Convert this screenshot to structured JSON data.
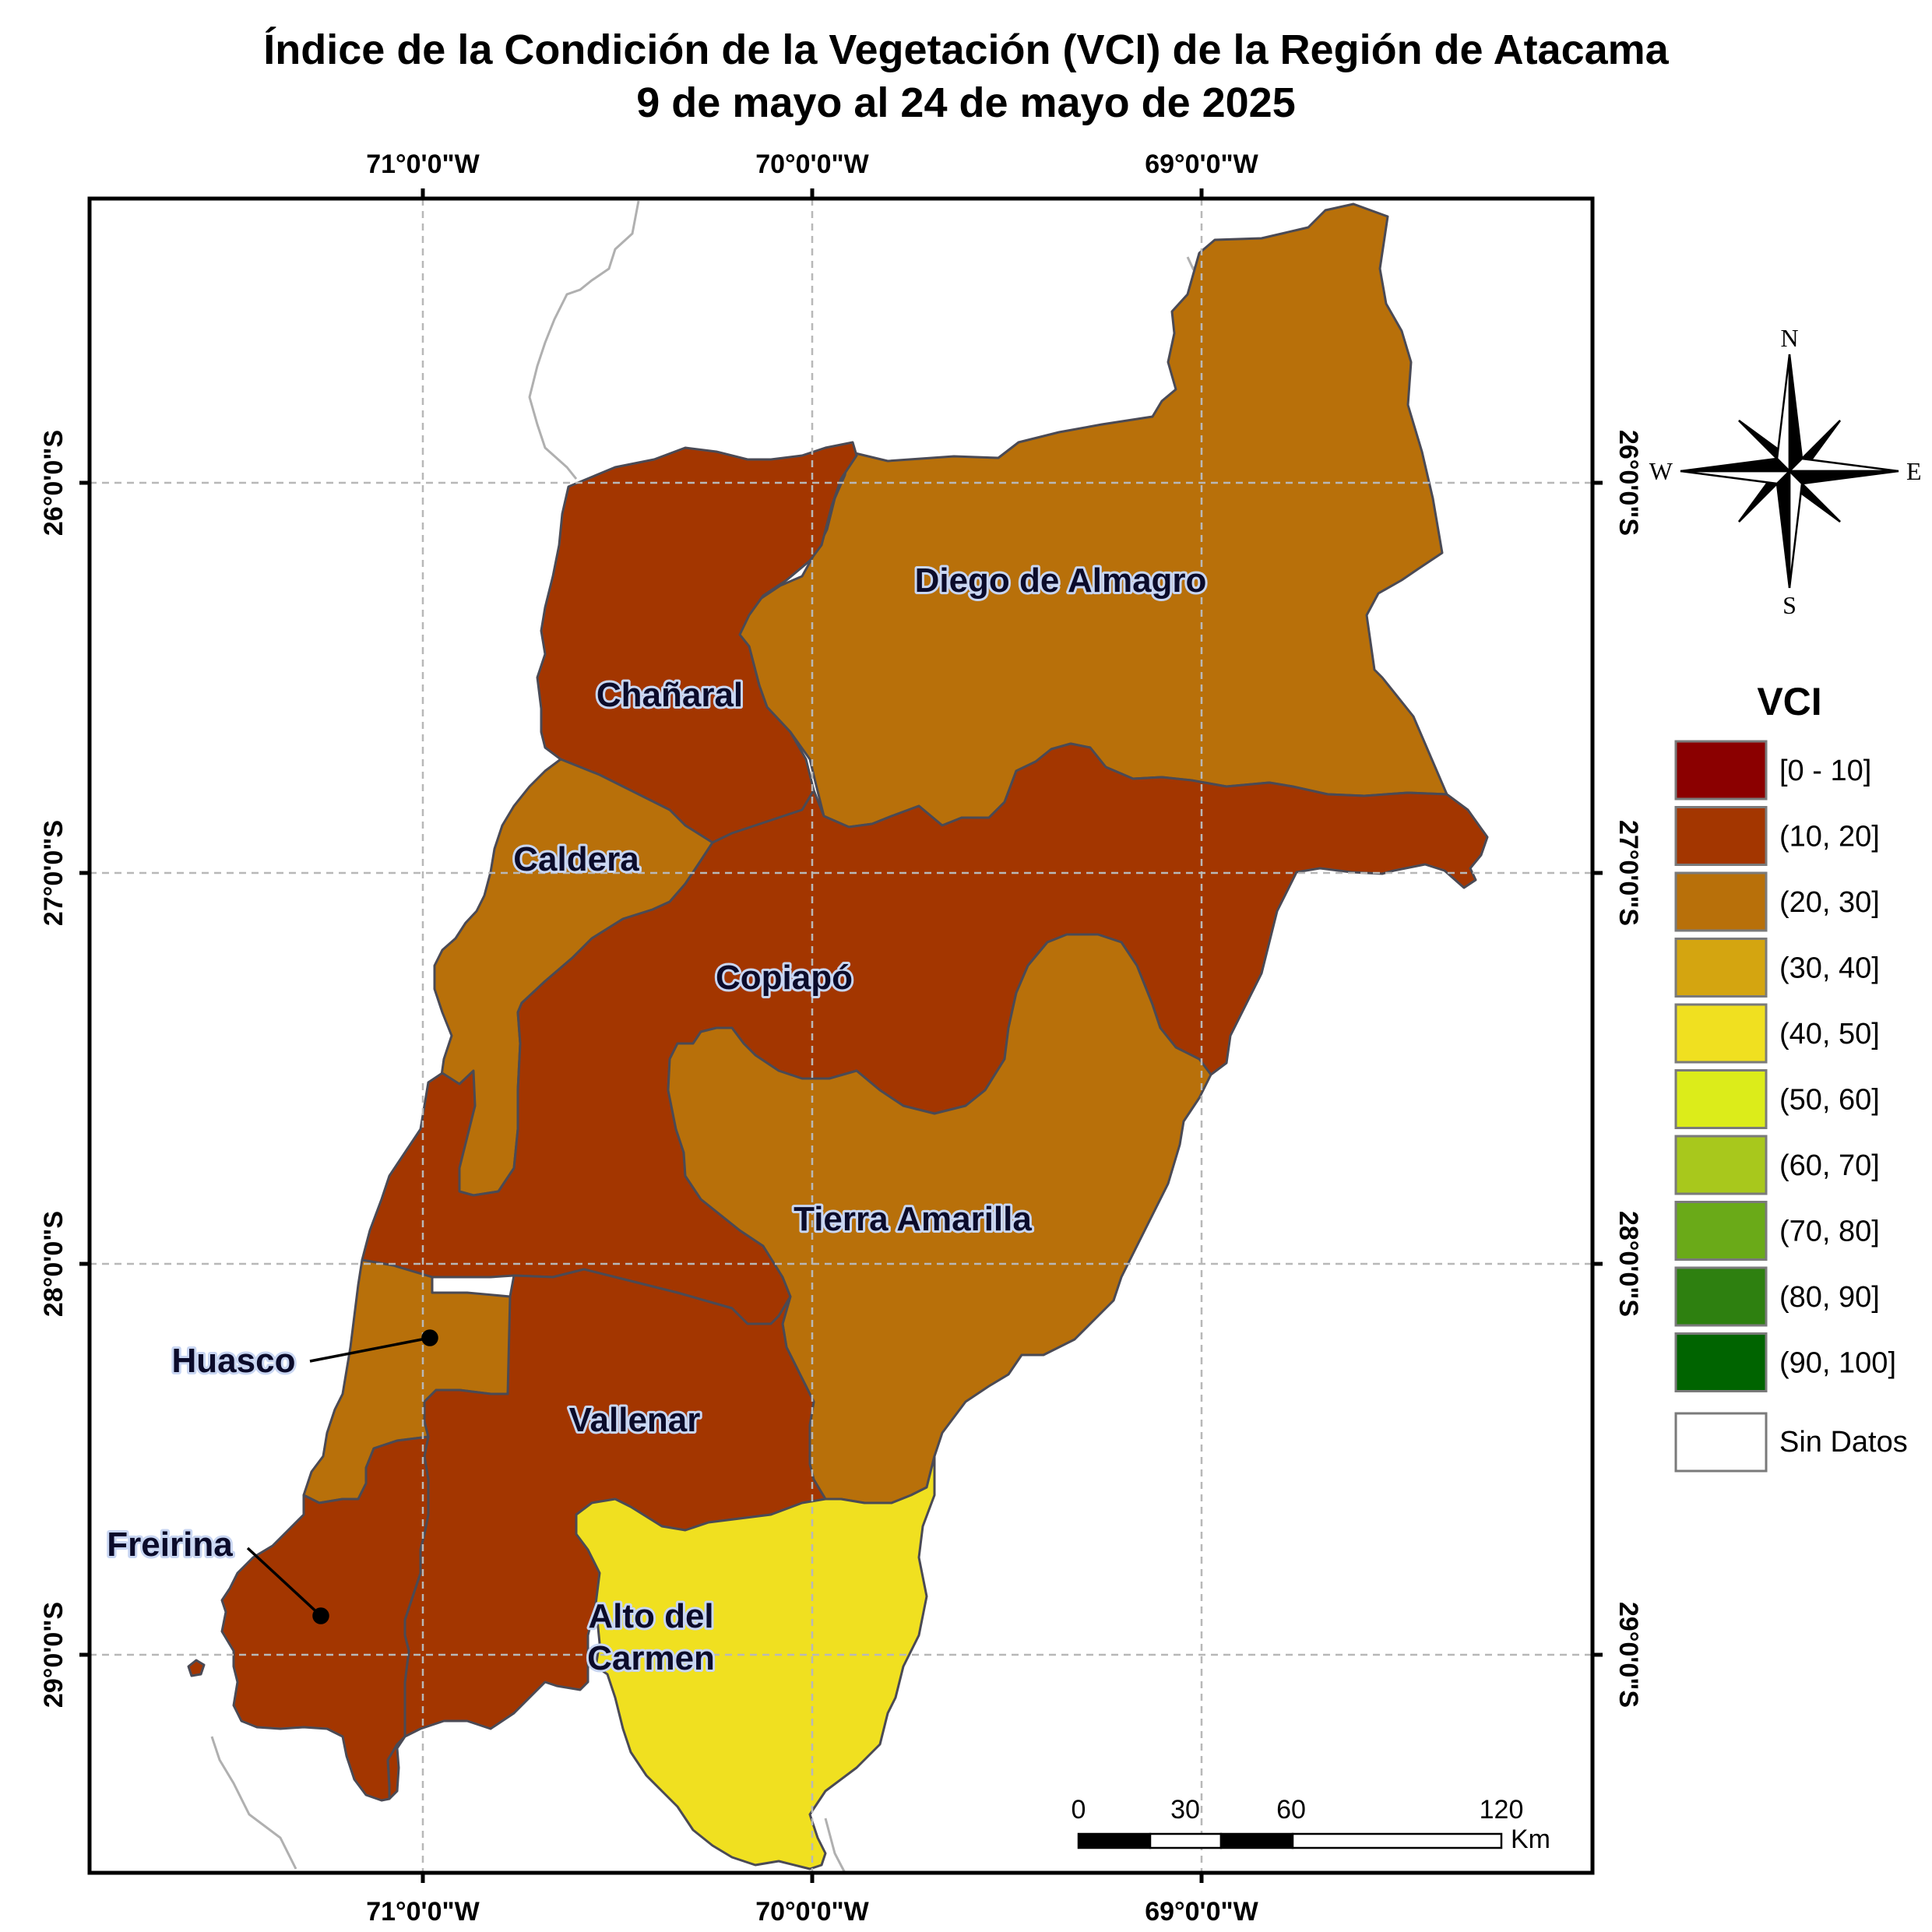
{
  "title": {
    "line1": "Índice de la Condición de la Vegetación (VCI) de la Región de Atacama",
    "line2": "9 de mayo al 24 de mayo de 2025"
  },
  "graticule": {
    "lon": [
      "71°0'0\"W",
      "70°0'0\"W",
      "69°0'0\"W"
    ],
    "lat": [
      "26°0'0\"S",
      "27°0'0\"S",
      "28°0'0\"S",
      "29°0'0\"S"
    ]
  },
  "communes": [
    {
      "name": "Diego de Almagro",
      "vci_class": "(20, 30]"
    },
    {
      "name": "Chañaral",
      "vci_class": "(10, 20]"
    },
    {
      "name": "Caldera",
      "vci_class": "(20, 30]"
    },
    {
      "name": "Copiapó",
      "vci_class": "(10, 20]"
    },
    {
      "name": "Tierra Amarilla",
      "vci_class": "(20, 30]"
    },
    {
      "name": "Huasco",
      "vci_class": "(20, 30]"
    },
    {
      "name": "Vallenar",
      "vci_class": "(10, 20]"
    },
    {
      "name": "Freirina",
      "vci_class": "(10, 20]"
    },
    {
      "name": "Alto del",
      "name2": "Carmen",
      "vci_class": "(40, 50]"
    }
  ],
  "north_arrow": {
    "n": "N",
    "s": "S",
    "e": "E",
    "w": "W"
  },
  "legend": {
    "title": "VCI",
    "classes": [
      {
        "label": "[0 - 10]",
        "color": "#8b0000"
      },
      {
        "label": "(10, 20]",
        "color": "#a33600"
      },
      {
        "label": "(20, 30]",
        "color": "#b8700a"
      },
      {
        "label": "(30, 40]",
        "color": "#d4a510"
      },
      {
        "label": "(40, 50]",
        "color": "#f0e020"
      },
      {
        "label": "(50, 60]",
        "color": "#dcec1a"
      },
      {
        "label": "(60, 70]",
        "color": "#a8c81c"
      },
      {
        "label": "(70, 80]",
        "color": "#6aaa18"
      },
      {
        "label": "(80, 90]",
        "color": "#2e8010"
      },
      {
        "label": "(90, 100]",
        "color": "#006400"
      }
    ],
    "no_data": {
      "label": "Sin Datos",
      "color": "#ffffff"
    }
  },
  "scale_bar": {
    "ticks": [
      "0",
      "30",
      "60",
      "120"
    ],
    "unit": "Km"
  }
}
